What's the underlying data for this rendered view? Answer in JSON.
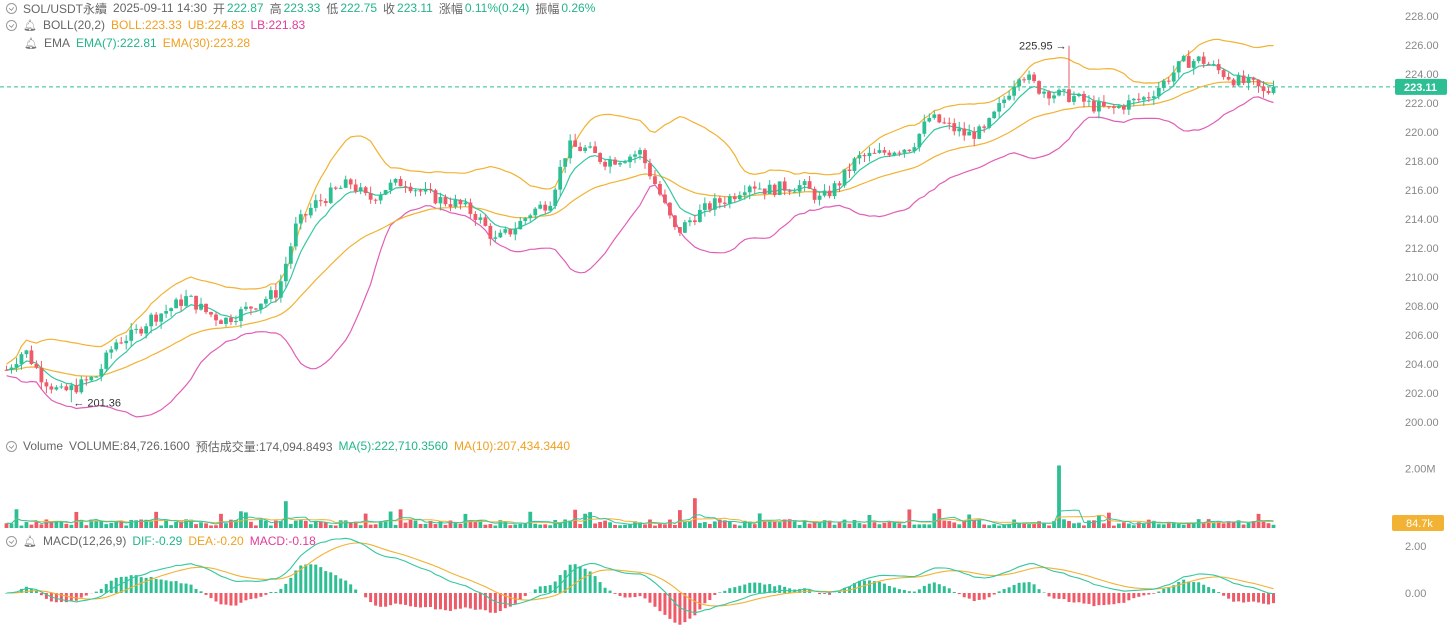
{
  "colors": {
    "up": "#2dbf93",
    "down": "#ee5a67",
    "ema7": "#34c7a0",
    "ema30": "#f2b233",
    "boll_mid": "#f2b233",
    "boll_ub": "#f2b233",
    "boll_lb": "#e05fb6",
    "last_price_label_bg": "#2dbf93",
    "volume_label_bg": "#f2b233",
    "axis_text": "#888888",
    "dash": "#2dbf93"
  },
  "header": {
    "symbol_line": {
      "symbol": "SOL/USDT永續",
      "time": "2025-09-11 14:30",
      "open_label": "开",
      "open": "222.87",
      "high_label": "高",
      "high": "223.33",
      "low_label": "低",
      "low": "222.75",
      "close_label": "收",
      "close": "223.11",
      "change_label": "涨幅",
      "change": "0.11%(0.24)",
      "amp_label": "振幅",
      "amp": "0.26%"
    },
    "boll_line": {
      "name": "BOLL(20,2)",
      "boll": "BOLL:223.33",
      "ub": "UB:224.83",
      "lb": "LB:221.83"
    },
    "ema_line": {
      "name": "EMA",
      "ema7": "EMA(7):222.81",
      "ema30": "EMA(30):223.28"
    }
  },
  "volume_header": {
    "name": "Volume",
    "volume": "VOLUME:84,726.1600",
    "est": "预估成交量:174,094.8493",
    "ma5": "MA(5):222,710.3560",
    "ma10": "MA(10):207,434.3440"
  },
  "macd_header": {
    "name": "MACD(12,26,9)",
    "dif": "DIF:-0.29",
    "dea": "DEA:-0.20",
    "macd": "MACD:-0.18"
  },
  "annotations": {
    "high_marker": "225.95",
    "low_marker": "201.36",
    "last_price": "223.11",
    "last_volume": "84.7k"
  },
  "chart_data": {
    "type": "candlestick",
    "price_axis": {
      "ticks": [
        "228.00",
        "226.00",
        "224.00",
        "222.00",
        "220.00",
        "218.00",
        "216.00",
        "214.00",
        "212.00",
        "210.00",
        "208.00",
        "206.00",
        "204.00",
        "202.00",
        "200.00"
      ],
      "range": [
        200,
        228
      ]
    },
    "volume_axis": {
      "ticks": [
        "2.00M"
      ],
      "range": [
        0,
        2.35
      ]
    },
    "macd_axis": {
      "ticks": [
        "2.00",
        "0.00"
      ],
      "range": [
        -1.6,
        2.4
      ]
    },
    "close_path": [
      [
        0,
        203.6
      ],
      [
        10,
        205.0
      ],
      [
        20,
        203.0
      ],
      [
        30,
        202.0
      ],
      [
        40,
        202.5
      ],
      [
        50,
        203.2
      ],
      [
        60,
        205.5
      ],
      [
        70,
        206.0
      ],
      [
        80,
        207.2
      ],
      [
        90,
        207.8
      ],
      [
        100,
        208.6
      ],
      [
        110,
        207.6
      ],
      [
        120,
        207.0
      ],
      [
        130,
        207.6
      ],
      [
        140,
        208.3
      ],
      [
        150,
        209.0
      ],
      [
        160,
        213.5
      ],
      [
        170,
        215.0
      ],
      [
        180,
        215.8
      ],
      [
        190,
        216.5
      ],
      [
        200,
        215.3
      ],
      [
        210,
        216.2
      ],
      [
        220,
        216.6
      ],
      [
        230,
        215.8
      ],
      [
        240,
        215.3
      ],
      [
        250,
        215.0
      ],
      [
        260,
        214.2
      ],
      [
        270,
        212.5
      ],
      [
        280,
        213.3
      ],
      [
        290,
        214.5
      ],
      [
        300,
        215.2
      ],
      [
        310,
        219.0
      ],
      [
        320,
        218.8
      ],
      [
        330,
        218.0
      ],
      [
        340,
        218.2
      ],
      [
        350,
        218.6
      ],
      [
        360,
        216.0
      ],
      [
        370,
        213.0
      ],
      [
        380,
        214.2
      ],
      [
        390,
        215.0
      ],
      [
        400,
        215.5
      ],
      [
        410,
        216.5
      ],
      [
        420,
        216.0
      ],
      [
        430,
        216.2
      ],
      [
        440,
        216.3
      ],
      [
        450,
        215.3
      ],
      [
        460,
        216.5
      ],
      [
        470,
        218.2
      ],
      [
        480,
        218.4
      ],
      [
        490,
        218.8
      ],
      [
        500,
        219.0
      ],
      [
        510,
        221.0
      ],
      [
        520,
        220.4
      ],
      [
        530,
        219.8
      ],
      [
        540,
        220.0
      ],
      [
        550,
        222.0
      ],
      [
        560,
        224.2
      ],
      [
        570,
        223.0
      ],
      [
        580,
        222.6
      ],
      [
        590,
        222.4
      ],
      [
        600,
        221.8
      ],
      [
        610,
        221.5
      ],
      [
        620,
        222.0
      ],
      [
        630,
        222.4
      ],
      [
        640,
        223.5
      ],
      [
        650,
        224.8
      ],
      [
        660,
        225.0
      ],
      [
        670,
        224.2
      ],
      [
        680,
        223.5
      ],
      [
        690,
        223.2
      ],
      [
        695,
        222.6
      ],
      [
        700,
        223.1
      ]
    ],
    "candles": 255,
    "high_marker_price": 225.95,
    "low_marker_price": 201.36,
    "last_price": 223.11
  }
}
